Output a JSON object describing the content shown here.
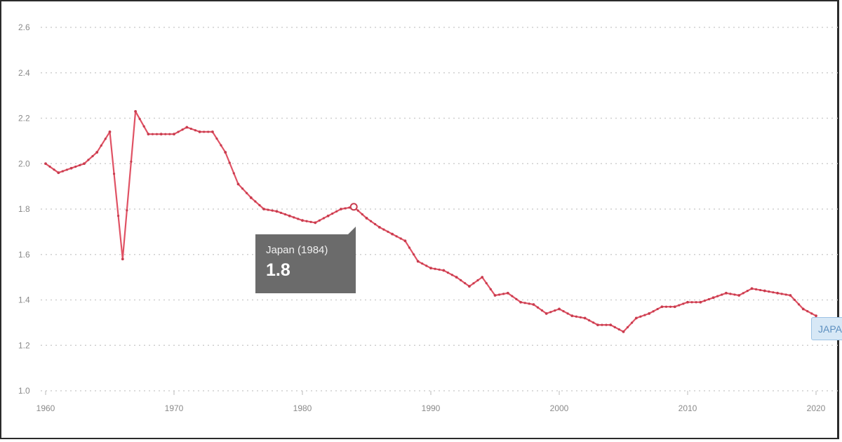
{
  "chart_data": {
    "type": "line",
    "xlabel": "",
    "ylabel": "",
    "ylim": [
      1.0,
      2.6
    ],
    "xlim": [
      1960,
      2021
    ],
    "yticks": [
      "1.0",
      "1.2",
      "1.4",
      "1.6",
      "1.8",
      "2.0",
      "2.2",
      "2.4",
      "2.6"
    ],
    "xticks": [
      "1960",
      "1970",
      "1980",
      "1990",
      "2000",
      "2010",
      "2020"
    ],
    "grid": true,
    "series": [
      {
        "x": [
          1960,
          1961,
          1962,
          1963,
          1964,
          1965,
          1966,
          1967,
          1968,
          1969,
          1970,
          1971,
          1972,
          1973,
          1974,
          1975,
          1976,
          1977,
          1978,
          1979,
          1980,
          1981,
          1982,
          1983,
          1984,
          1985,
          1986,
          1987,
          1988,
          1989,
          1990,
          1991,
          1992,
          1993,
          1994,
          1995,
          1996,
          1997,
          1998,
          1999,
          2000,
          2001,
          2002,
          2003,
          2004,
          2005,
          2006,
          2007,
          2008,
          2009,
          2010,
          2011,
          2012,
          2013,
          2014,
          2015,
          2016,
          2017,
          2018,
          2019,
          2020
        ],
        "values": [
          2.0,
          1.96,
          1.98,
          2.0,
          2.05,
          2.14,
          1.58,
          2.23,
          2.13,
          2.13,
          2.13,
          2.16,
          2.14,
          2.14,
          2.05,
          1.91,
          1.85,
          1.8,
          1.79,
          1.77,
          1.75,
          1.74,
          1.77,
          1.8,
          1.81,
          1.76,
          1.72,
          1.69,
          1.66,
          1.57,
          1.54,
          1.53,
          1.5,
          1.46,
          1.5,
          1.42,
          1.43,
          1.39,
          1.38,
          1.34,
          1.36,
          1.33,
          1.32,
          1.29,
          1.29,
          1.26,
          1.32,
          1.34,
          1.37,
          1.37,
          1.39,
          1.39,
          1.41,
          1.43,
          1.42,
          1.45,
          1.44,
          1.43,
          1.42,
          1.36,
          1.33
        ],
        "color": "#e05264"
      }
    ],
    "tooltip": {
      "title": "Japan (1984)",
      "value": "1.8",
      "x": 1984,
      "y": 1.81
    },
    "end_label": "JAPAN"
  }
}
